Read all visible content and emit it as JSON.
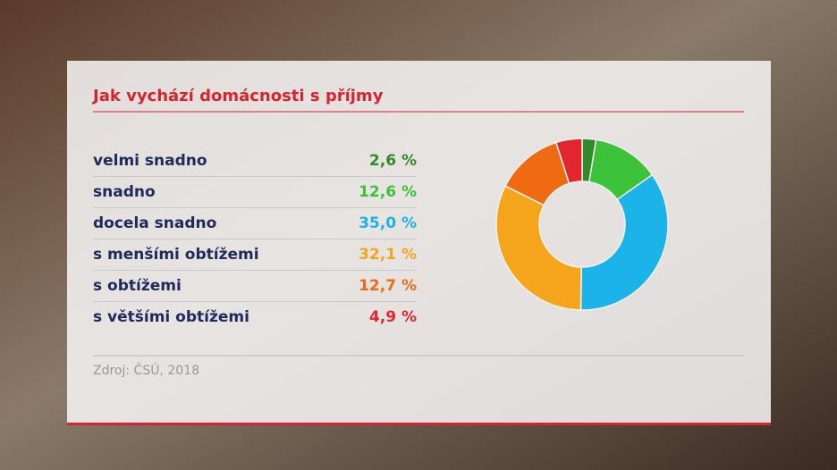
{
  "chart_data": {
    "type": "pie",
    "donut": true,
    "title": "Jak vychází domácnosti s příjmy",
    "categories": [
      "velmi snadno",
      "snadno",
      "docela snadno",
      "s menšími obtížemi",
      "s obtížemi",
      "s většími obtížemi"
    ],
    "values": [
      2.6,
      12.6,
      35.0,
      32.1,
      12.7,
      4.9
    ],
    "value_labels": [
      "2,6 %",
      "12,6 %",
      "35,0 %",
      "32,1 %",
      "12,7 %",
      "4,9 %"
    ],
    "colors": [
      "#2f8a2a",
      "#3cc33a",
      "#1cb3ea",
      "#f5a51c",
      "#f06a12",
      "#e3262e"
    ],
    "source": "Zdroj: ČSÚ, 2018"
  }
}
